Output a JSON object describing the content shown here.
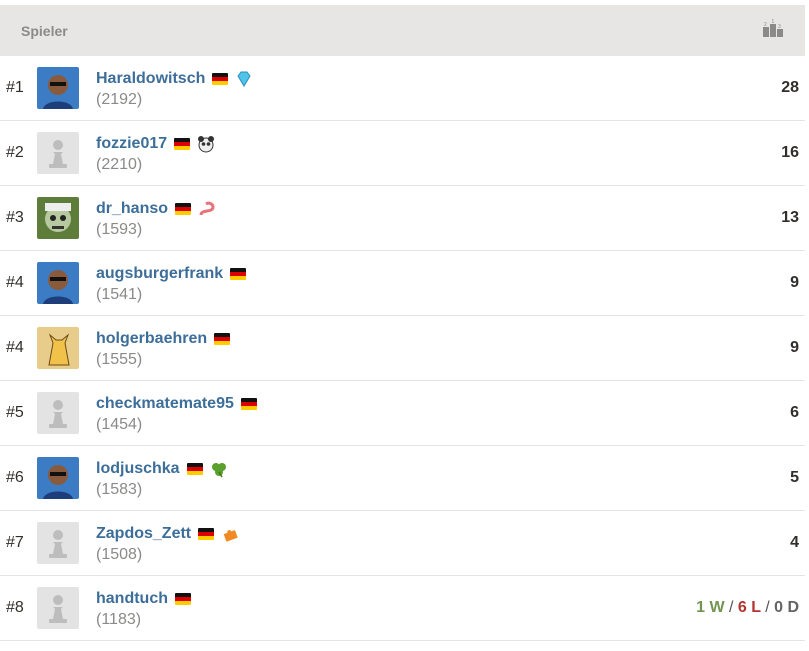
{
  "header": {
    "column_player": "Spieler",
    "trophy_icon": "podium-icon"
  },
  "rows": [
    {
      "rank": "#1",
      "name": "Haraldowitsch",
      "rating": "(2192)",
      "flag": "germany-flag",
      "badge": "diamond-icon",
      "avatar": "photo",
      "score": "28"
    },
    {
      "rank": "#2",
      "name": "fozzie017",
      "rating": "(2210)",
      "flag": "germany-flag",
      "badge": "panda-icon",
      "avatar": "pawn",
      "score": "16"
    },
    {
      "rank": "#3",
      "name": "dr_hanso",
      "rating": "(1593)",
      "flag": "germany-flag",
      "badge": "worm-icon",
      "avatar": "zombie",
      "score": "13"
    },
    {
      "rank": "#4",
      "name": "augsburgerfrank",
      "rating": "(1541)",
      "flag": "germany-flag",
      "badge": "",
      "avatar": "photo",
      "score": "9"
    },
    {
      "rank": "#4",
      "name": "holgerbaehren",
      "rating": "(1555)",
      "flag": "germany-flag",
      "badge": "",
      "avatar": "cat",
      "score": "9"
    },
    {
      "rank": "#5",
      "name": "checkmatemate95",
      "rating": "(1454)",
      "flag": "germany-flag",
      "badge": "",
      "avatar": "pawn",
      "score": "6"
    },
    {
      "rank": "#6",
      "name": "lodjuschka",
      "rating": "(1583)",
      "flag": "germany-flag",
      "badge": "clover-icon",
      "avatar": "photo",
      "score": "5"
    },
    {
      "rank": "#7",
      "name": "Zapdos_Zett",
      "rating": "(1508)",
      "flag": "germany-flag",
      "badge": "puzzle-icon",
      "avatar": "pawn",
      "score": "4"
    },
    {
      "rank": "#8",
      "name": "handtuch",
      "rating": "(1183)",
      "flag": "germany-flag",
      "badge": "",
      "avatar": "pawn",
      "score": null,
      "record": {
        "wins": "1 W",
        "sep1": "/",
        "losses": "6 L",
        "sep2": "/",
        "draws": "0 D"
      }
    }
  ],
  "colors": {
    "name": "#3d6e9a",
    "win": "#739552",
    "loss": "#b33430",
    "draw": "#666463",
    "header_bg": "#e8e6e4"
  }
}
